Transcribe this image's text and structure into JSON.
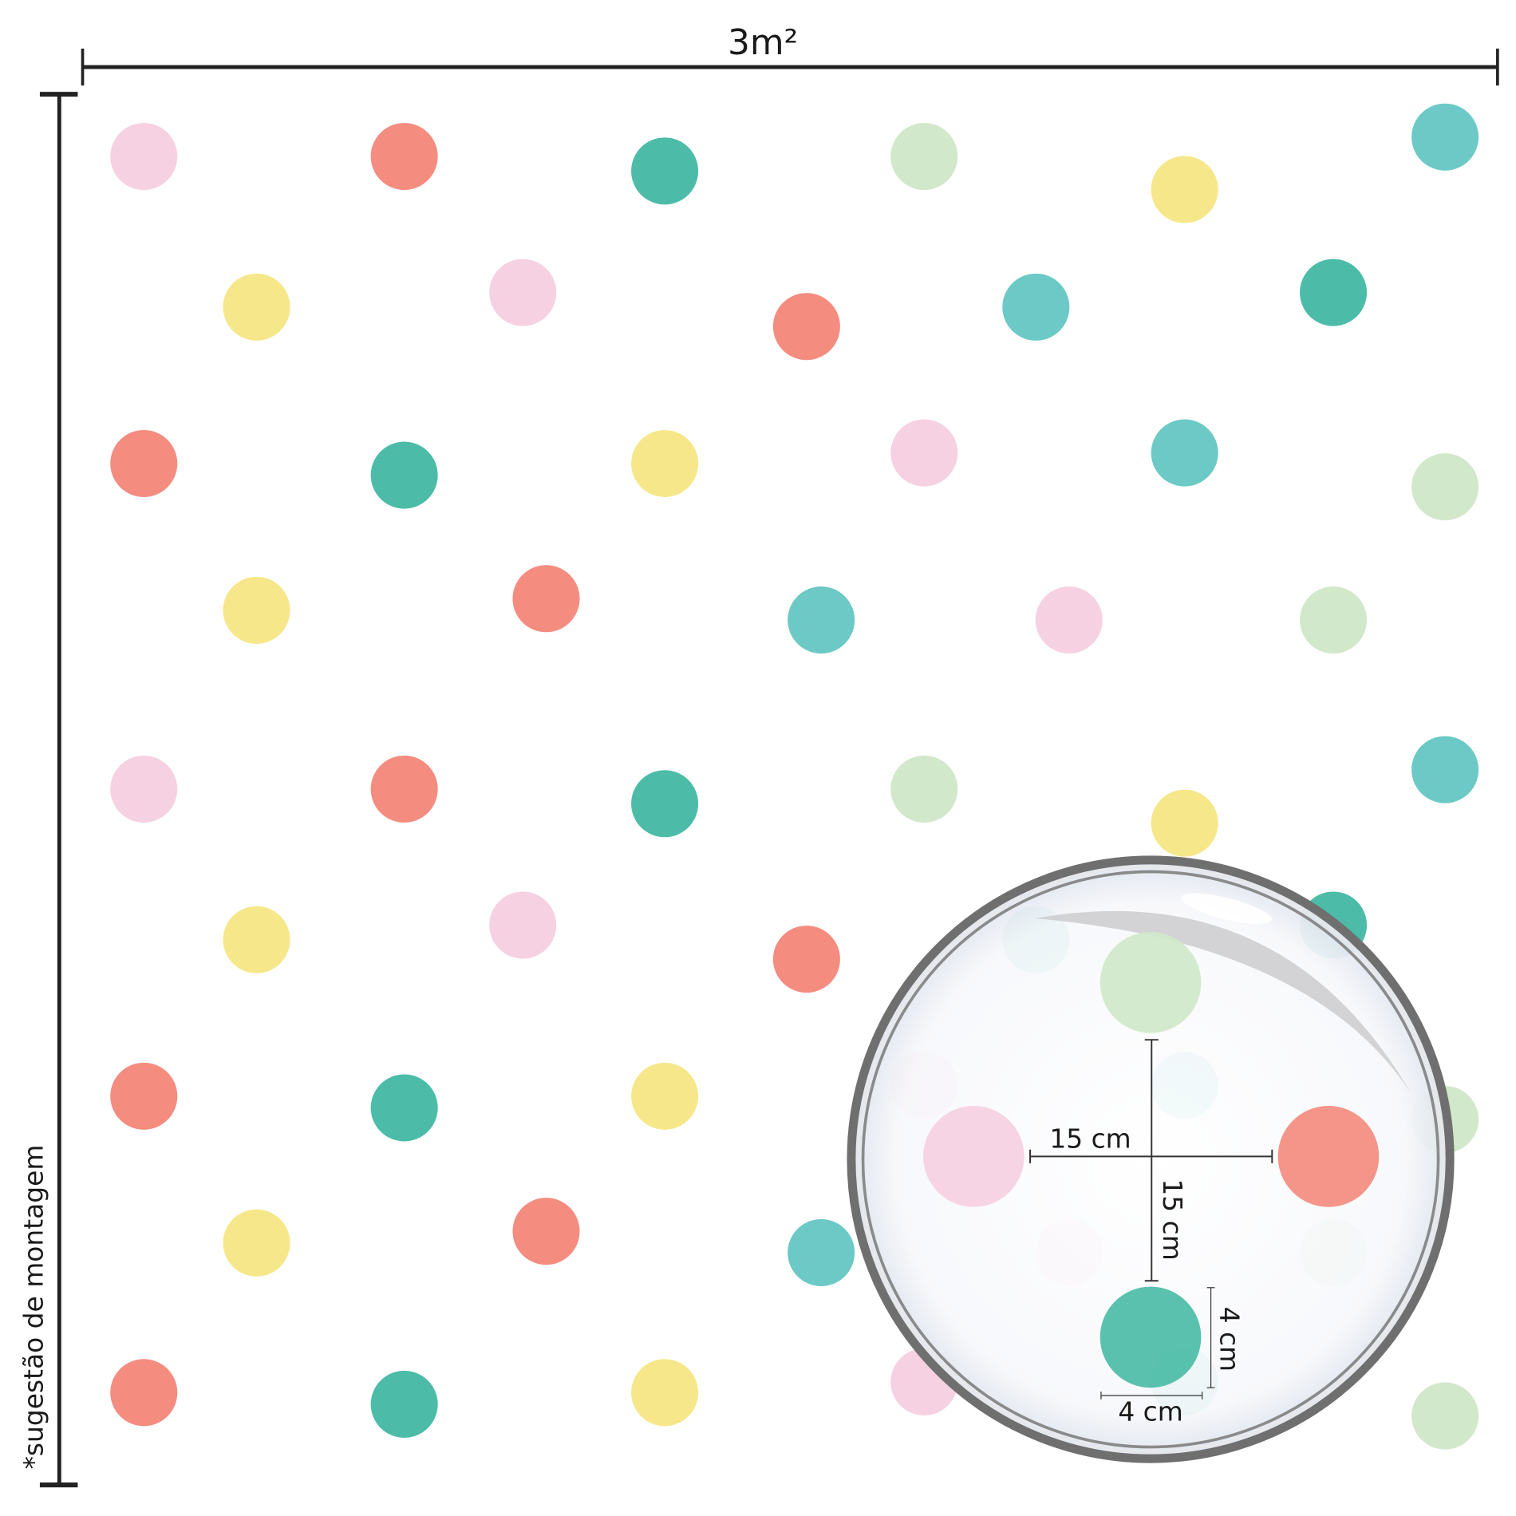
{
  "width_label": "3m²",
  "side_note": "*sugestão de montagem",
  "colors": {
    "pink": "#f6d1e1",
    "coral": "#f48c80",
    "green": "#4cbca8",
    "lightgreen": "#d1e8ca",
    "yellow": "#f6e88a",
    "cyan": "#6cc9c6",
    "line": "#222222"
  },
  "dots": [
    [
      "pink",
      "coral",
      "green",
      "lightgreen",
      "yellow",
      "cyan"
    ],
    [
      "yellow",
      "pink",
      "coral",
      "cyan",
      "green"
    ],
    [
      "coral",
      "green",
      "yellow",
      "pink",
      "cyan",
      "lightgreen"
    ],
    [
      "yellow",
      "coral",
      "cyan",
      "pink",
      "lightgreen"
    ],
    [
      "pink",
      "coral",
      "green",
      "lightgreen",
      "yellow",
      "cyan"
    ],
    [
      "yellow",
      "pink",
      "coral",
      "cyan",
      "green"
    ],
    [
      "coral",
      "green",
      "yellow",
      "pink",
      "cyan",
      "lightgreen"
    ],
    [
      "yellow",
      "coral",
      "cyan",
      "pink",
      "lightgreen"
    ],
    [
      "coral",
      "green",
      "yellow",
      "pink",
      "cyan",
      "lightgreen"
    ]
  ],
  "magnifier": {
    "spacing_h_label": "15 cm",
    "spacing_v_label": "15 cm",
    "dot_height_label": "4 cm",
    "dot_width_label": "4 cm",
    "dots": [
      "lightgreen",
      "pink",
      "coral",
      "green"
    ]
  }
}
